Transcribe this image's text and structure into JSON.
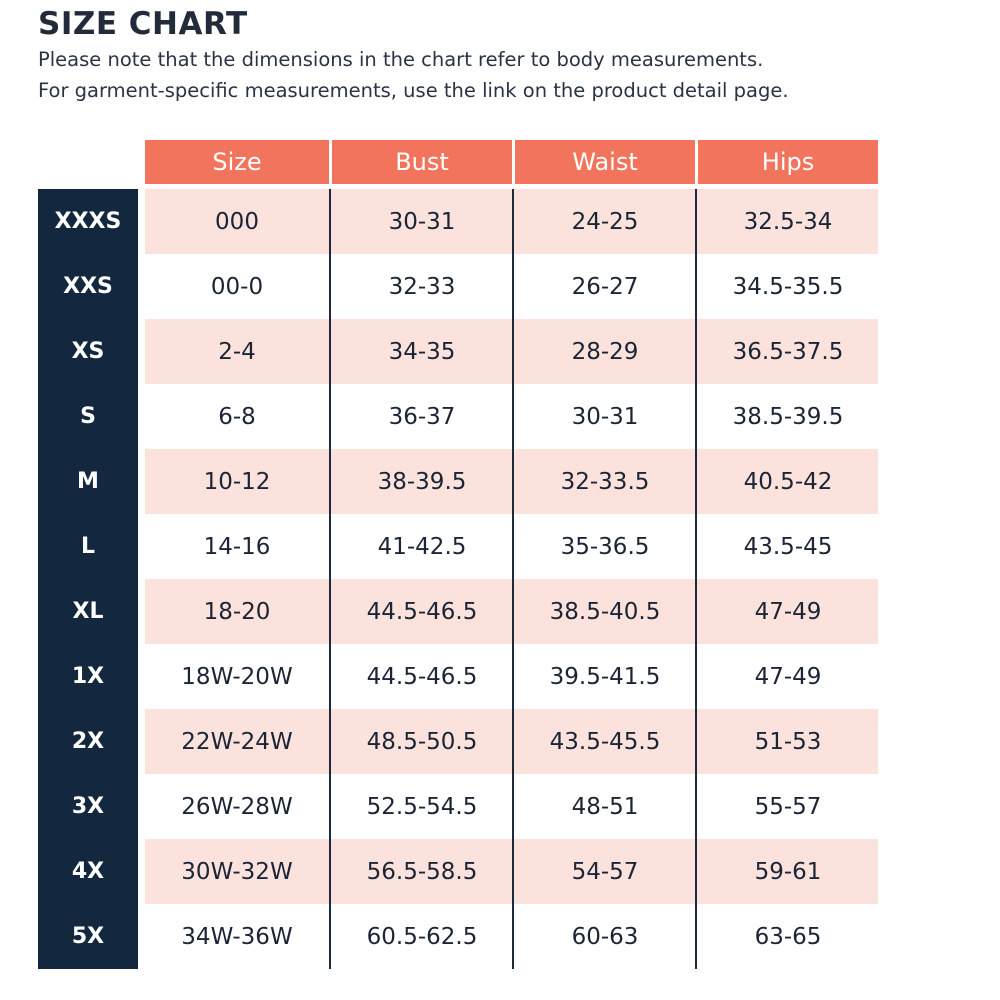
{
  "title": "SIZE CHART",
  "notes": [
    "Please note that the dimensions in the chart refer to body measurements.",
    "For garment-specific measurements, use the link on the product detail page."
  ],
  "colors": {
    "header_bg": "#f3745d",
    "sidebar_bg": "#13283f",
    "row_shade": "#fbe2dc"
  },
  "table": {
    "headers": [
      "Size",
      "Bust",
      "Waist",
      "Hips"
    ],
    "rows": [
      {
        "label": "XXXS",
        "size": "000",
        "bust": "30-31",
        "waist": "24-25",
        "hips": "32.5-34"
      },
      {
        "label": "XXS",
        "size": "00-0",
        "bust": "32-33",
        "waist": "26-27",
        "hips": "34.5-35.5"
      },
      {
        "label": "XS",
        "size": "2-4",
        "bust": "34-35",
        "waist": "28-29",
        "hips": "36.5-37.5"
      },
      {
        "label": "S",
        "size": "6-8",
        "bust": "36-37",
        "waist": "30-31",
        "hips": "38.5-39.5"
      },
      {
        "label": "M",
        "size": "10-12",
        "bust": "38-39.5",
        "waist": "32-33.5",
        "hips": "40.5-42"
      },
      {
        "label": "L",
        "size": "14-16",
        "bust": "41-42.5",
        "waist": "35-36.5",
        "hips": "43.5-45"
      },
      {
        "label": "XL",
        "size": "18-20",
        "bust": "44.5-46.5",
        "waist": "38.5-40.5",
        "hips": "47-49"
      },
      {
        "label": "1X",
        "size": "18W-20W",
        "bust": "44.5-46.5",
        "waist": "39.5-41.5",
        "hips": "47-49"
      },
      {
        "label": "2X",
        "size": "22W-24W",
        "bust": "48.5-50.5",
        "waist": "43.5-45.5",
        "hips": "51-53"
      },
      {
        "label": "3X",
        "size": "26W-28W",
        "bust": "52.5-54.5",
        "waist": "48-51",
        "hips": "55-57"
      },
      {
        "label": "4X",
        "size": "30W-32W",
        "bust": "56.5-58.5",
        "waist": "54-57",
        "hips": "59-61"
      },
      {
        "label": "5X",
        "size": "34W-36W",
        "bust": "60.5-62.5",
        "waist": "60-63",
        "hips": "63-65"
      }
    ]
  }
}
